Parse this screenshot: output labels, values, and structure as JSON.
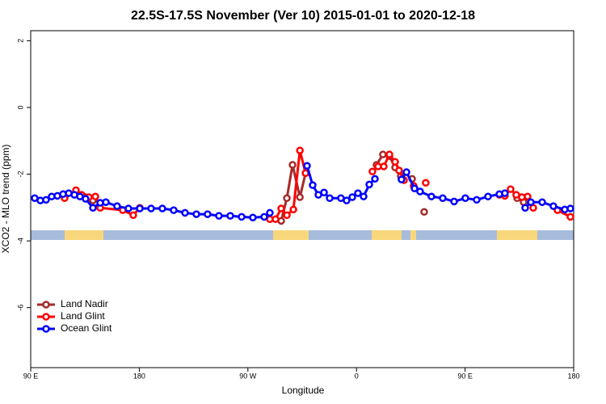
{
  "chart_data": {
    "type": "line",
    "title": "22.5S-17.5S November (Ver 10)   2015-01-01 to 2020-12-18",
    "xlabel": "Longitude",
    "ylabel": "XCO2 - MLO trend (ppm)",
    "xlim": [
      90,
      540
    ],
    "ylim": [
      -7.8,
      2.3
    ],
    "xticks": [
      {
        "value": 90,
        "label": "90 E"
      },
      180,
      {
        "value": 270,
        "label": "90 W"
      },
      {
        "value": 360,
        "label": "0"
      },
      {
        "value": 450,
        "label": "90 E"
      },
      {
        "value": 540,
        "label": "180"
      }
    ],
    "yticks": [
      2,
      0,
      -2,
      -4,
      -6
    ],
    "legend": "bottomleft",
    "series": [
      {
        "name": "Land Nadir",
        "color": "#a52a2a",
        "x": [
          135.5,
          141.6,
          200,
          297.6,
          302.3,
          307.0,
          313.1,
          317.8,
          350,
          376.6,
          381.9,
          387.3,
          392.0,
          396.7,
          400,
          406.1,
          410,
          416.1,
          450,
          493.1,
          498.5
        ],
        "values": [
          -2.69,
          -2.79,
          null,
          -3.4,
          -2.72,
          -1.72,
          -2.69,
          -1.97,
          null,
          -1.72,
          -1.41,
          -1.46,
          -1.8,
          -2.06,
          null,
          -2.14,
          null,
          -3.13,
          null,
          -2.72,
          -2.84
        ]
      },
      {
        "name": "Land Glint",
        "color": "#ff0000",
        "x": [
          118.1,
          127.5,
          132.2,
          138.2,
          143.6,
          147.6,
          166.3,
          175.0,
          180.4,
          230,
          288.2,
          292.9,
          297.6,
          302.3,
          307.7,
          313.1,
          317.8,
          350,
          373.2,
          377.9,
          382.6,
          387.3,
          392.0,
          395.3,
          399.4,
          403,
          407.4,
          412,
          417.4,
          450,
          478.4,
          483.0,
          487.7,
          492.4,
          497.1,
          501.8,
          506.5,
          515,
          526.6,
          537.3
        ],
        "values": [
          -2.72,
          -2.48,
          -2.62,
          -2.69,
          -2.67,
          -3.01,
          -3.08,
          -3.23,
          -3.01,
          null,
          -3.35,
          -3.35,
          -3.03,
          -3.23,
          -3.06,
          -1.29,
          -1.97,
          null,
          -1.92,
          -1.77,
          -1.77,
          -1.41,
          -1.63,
          -1.89,
          -2.18,
          null,
          -2.35,
          null,
          -2.26,
          null,
          -2.62,
          -2.65,
          -2.45,
          -2.62,
          -2.69,
          -2.67,
          -3.01,
          null,
          -3.08,
          -3.28
        ]
      },
      {
        "name": "Ocean Glint",
        "color": "#0000ff",
        "x": [
          93.3,
          98.0,
          102.7,
          107.4,
          112.1,
          116.8,
          121.5,
          126.2,
          130.8,
          135.5,
          141.6,
          147.6,
          152.3,
          161.6,
          171.0,
          180.4,
          189.8,
          199.1,
          208.5,
          217.9,
          227.3,
          236.6,
          246.0,
          255.4,
          264.8,
          274.1,
          283.5,
          288.2,
          300,
          319.0,
          323.7,
          328.4,
          333.1,
          337.8,
          347.1,
          351.8,
          356.5,
          361.2,
          365.9,
          370.6,
          375.3,
          390,
          397.3,
          401.4,
          408.1,
          412.7,
          422.1,
          431.5,
          440.9,
          450.2,
          459.6,
          469.0,
          478.4,
          483.0,
          490,
          499.8,
          504.5,
          513.9,
          523.2,
          532.6,
          537.3
        ],
        "values": [
          -2.72,
          -2.79,
          -2.77,
          -2.67,
          -2.65,
          -2.6,
          -2.57,
          -2.62,
          -2.67,
          -2.74,
          -3.01,
          -2.86,
          -2.84,
          -2.96,
          -3.03,
          -3.03,
          -3.03,
          -3.03,
          -3.08,
          -3.16,
          -3.2,
          -3.2,
          -3.25,
          -3.25,
          -3.28,
          -3.3,
          -3.28,
          -3.16,
          null,
          -1.75,
          -2.33,
          -2.62,
          -2.55,
          -2.72,
          -2.72,
          -2.79,
          -2.69,
          -2.57,
          -2.67,
          -2.31,
          -2.14,
          null,
          -2.16,
          -1.94,
          -2.43,
          -2.52,
          -2.67,
          -2.72,
          -2.82,
          -2.72,
          -2.77,
          -2.67,
          -2.6,
          -2.57,
          null,
          -3.01,
          -2.84,
          -2.84,
          -2.96,
          -3.06,
          -3.03
        ]
      }
    ]
  }
}
